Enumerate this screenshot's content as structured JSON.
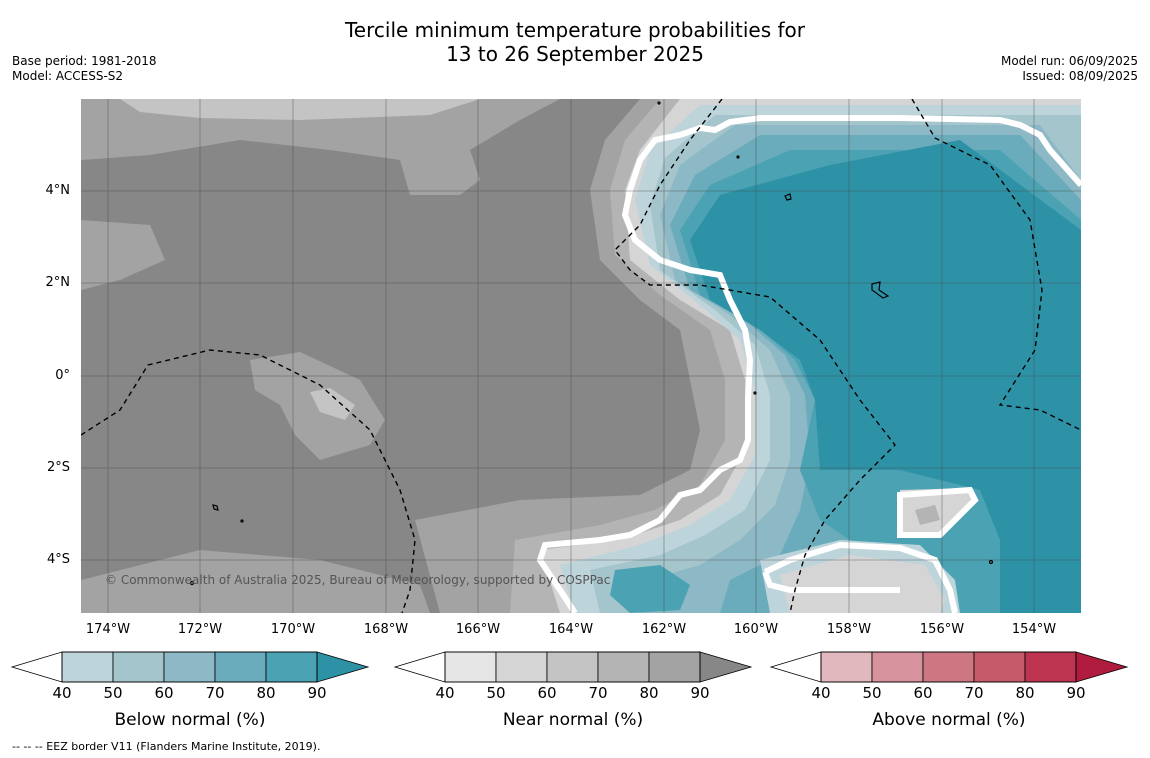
{
  "title_line1": "Tercile minimum temperature probabilities for",
  "title_line2": "13 to 26 September 2025",
  "meta_left": [
    "Base period: 1981-2018",
    "Model: ACCESS-S2"
  ],
  "meta_right": [
    "Model run: 06/09/2025",
    "Issued: 08/09/2025"
  ],
  "lat_labels": [
    "4°N",
    "2°N",
    "0°",
    "2°S",
    "4°S"
  ],
  "lon_labels": [
    "174°W",
    "172°W",
    "170°W",
    "168°W",
    "166°W",
    "164°W",
    "162°W",
    "160°W",
    "158°W",
    "156°W",
    "154°W"
  ],
  "copyright": "© Commonwealth of Australia 2025, Bureau of Meteorology, supported by COSPPac",
  "footnote": "--  --  -- EEZ border V11 (Flanders Marine Institute, 2019).",
  "colorbars": [
    {
      "title": "Below normal (%)",
      "ticks": [
        "40",
        "50",
        "60",
        "70",
        "80",
        "90"
      ],
      "colors": [
        "#bdd4db",
        "#a5c5cc",
        "#8db8c5",
        "#6aacbb",
        "#4aa2b2",
        "#2e92a7"
      ]
    },
    {
      "title": "Near normal (%)",
      "ticks": [
        "40",
        "50",
        "60",
        "70",
        "80",
        "90"
      ],
      "colors": [
        "#e6e6e6",
        "#d5d5d5",
        "#c4c4c4",
        "#b4b4b4",
        "#a3a3a3",
        "#878787"
      ]
    },
    {
      "title": "Above normal (%)",
      "ticks": [
        "40",
        "50",
        "60",
        "70",
        "80",
        "90"
      ],
      "colors": [
        "#e2b8bf",
        "#d6939d",
        "#cc7782",
        "#c45a6a",
        "#bc3450",
        "#b01c3e"
      ]
    }
  ]
}
